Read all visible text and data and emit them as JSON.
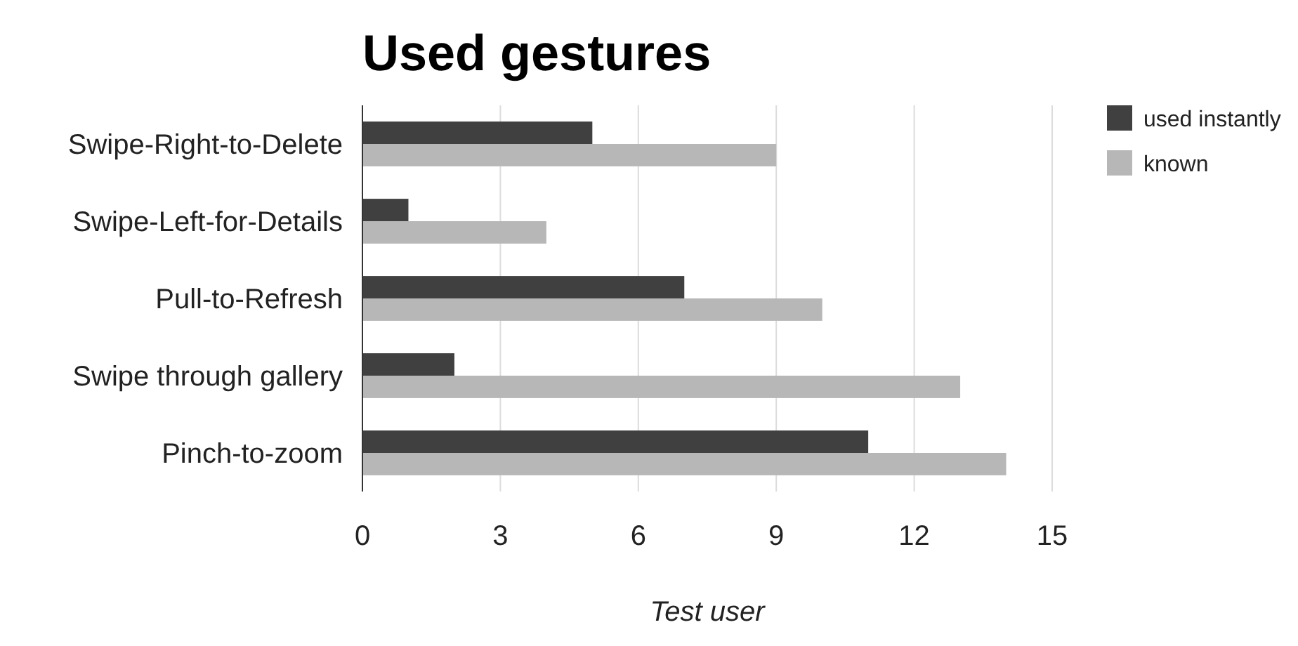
{
  "chart_data": {
    "type": "bar",
    "orientation": "horizontal",
    "title": "Used gestures",
    "xlabel": "Test user",
    "categories": [
      "Swipe-Right-to-Delete",
      "Swipe-Left-for-Details",
      "Pull-to-Refresh",
      "Swipe through gallery",
      "Pinch-to-zoom"
    ],
    "series": [
      {
        "name": "used instantly",
        "color": "#404040",
        "values": [
          5,
          1,
          7,
          2,
          11
        ]
      },
      {
        "name": "known",
        "color": "#b7b7b7",
        "values": [
          9,
          4,
          10,
          13,
          14
        ]
      }
    ],
    "xlim": [
      0,
      15
    ],
    "xticks": [
      0,
      3,
      6,
      9,
      12,
      15
    ],
    "grid": "x",
    "legend": "top right"
  }
}
